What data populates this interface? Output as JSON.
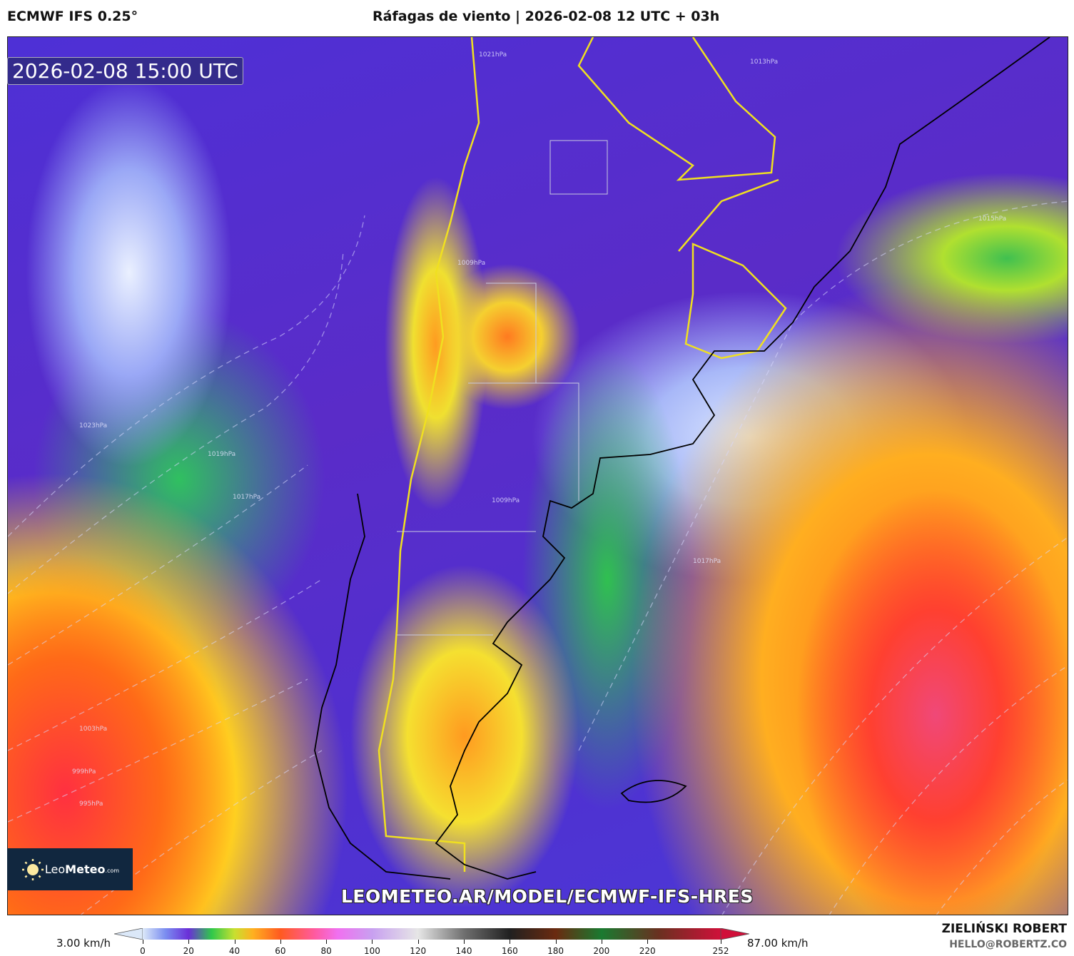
{
  "header": {
    "model": "ECMWF IFS 0.25°",
    "title": "Ráfagas de viento | 2026-02-08 12 UTC + 03h"
  },
  "map": {
    "valid_time": "2026-02-08 15:00 UTC",
    "url_watermark": "LEOMETEO.AR/MODEL/ECMWF-IFS-HRES",
    "logo": {
      "name": "Leo",
      "bold": "Meteo",
      "suffix": ".com"
    },
    "isobar_labels": [
      "1021hPa",
      "1013hPa",
      "1015hPa",
      "1009hPa",
      "1023hPa",
      "1019hPa",
      "1017hPa",
      "1009hPa",
      "1017hPa",
      "1003hPa",
      "999hPa",
      "995hPa"
    ],
    "colors": {
      "land_borders": "#f0e020",
      "coastline": "#000000",
      "isobars": "#d8d8ff"
    }
  },
  "colorbar": {
    "min_label": "3.00 km/h",
    "max_label": "87.00 km/h",
    "ticks": [
      "0",
      "20",
      "40",
      "60",
      "80",
      "100",
      "120",
      "140",
      "160",
      "180",
      "200",
      "220",
      "252"
    ],
    "stops": [
      [
        0,
        "#dbe8f8"
      ],
      [
        10,
        "#7a8cf0"
      ],
      [
        20,
        "#6a2fd8"
      ],
      [
        30,
        "#2fc84a"
      ],
      [
        40,
        "#c8e030"
      ],
      [
        48,
        "#ffb020"
      ],
      [
        60,
        "#ff5a20"
      ],
      [
        75,
        "#ff5aa0"
      ],
      [
        85,
        "#f070f0"
      ],
      [
        100,
        "#c8a0f0"
      ],
      [
        120,
        "#e6e6e6"
      ],
      [
        140,
        "#707070"
      ],
      [
        160,
        "#202020"
      ],
      [
        180,
        "#6a2a10"
      ],
      [
        200,
        "#1a7a30"
      ],
      [
        225,
        "#6a3020"
      ],
      [
        252,
        "#d0103a"
      ]
    ]
  },
  "footer": {
    "author": "ZIELIŃSKI ROBERT",
    "email": "HELLO@ROBERTZ.CO"
  }
}
